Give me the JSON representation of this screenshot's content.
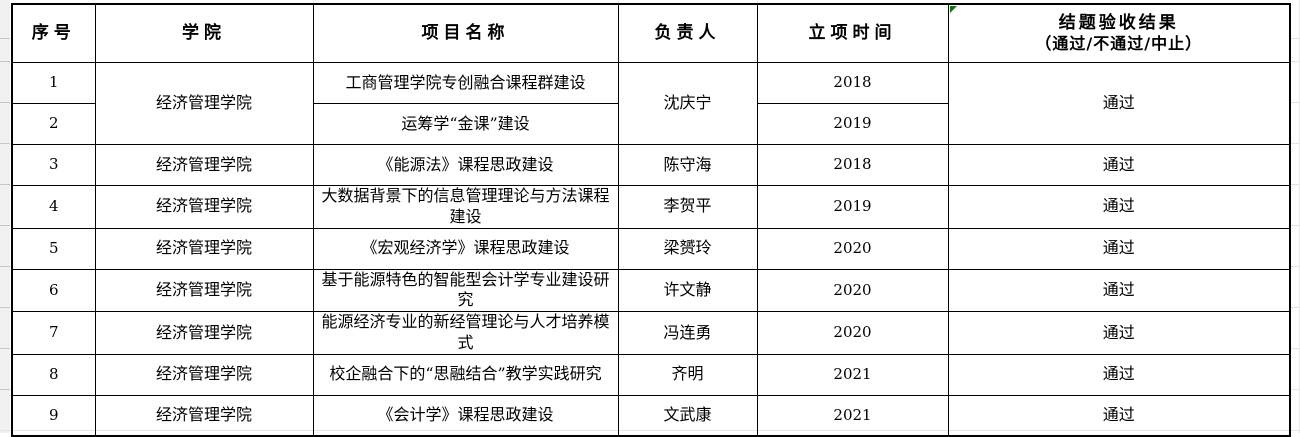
{
  "table": {
    "headers": [
      {
        "label": "序号"
      },
      {
        "label": "学院"
      },
      {
        "label": "项目名称"
      },
      {
        "label": "负责人"
      },
      {
        "label": "立项时间"
      },
      {
        "label": "结题验收结果",
        "sub": "（通过/不通过/中止）"
      }
    ],
    "rows": [
      {
        "no": "1",
        "college": "经济管理学院",
        "project": "工商管理学院专创融合课程群建设",
        "leader": "沈庆宁",
        "year": "2018",
        "result": "通过"
      },
      {
        "no": "2",
        "project": "运筹学“金课”建设",
        "year": "2019"
      },
      {
        "no": "3",
        "college": "经济管理学院",
        "project": "《能源法》课程思政建设",
        "leader": "陈守海",
        "year": "2018",
        "result": "通过"
      },
      {
        "no": "4",
        "college": "经济管理学院",
        "project": "大数据背景下的信息管理理论与方法课程建设",
        "leader": "李贺平",
        "year": "2019",
        "result": "通过"
      },
      {
        "no": "5",
        "college": "经济管理学院",
        "project": "《宏观经济学》课程思政建设",
        "leader": "梁赟玲",
        "year": "2020",
        "result": "通过"
      },
      {
        "no": "6",
        "college": "经济管理学院",
        "project": "基于能源特色的智能型会计学专业建设研究",
        "leader": "许文静",
        "year": "2020",
        "result": "通过"
      },
      {
        "no": "7",
        "college": "经济管理学院",
        "project": "能源经济专业的新经管理论与人才培养模式",
        "leader": "冯连勇",
        "year": "2020",
        "result": "通过"
      },
      {
        "no": "8",
        "college": "经济管理学院",
        "project": "校企融合下的“思融结合”教学实践研究",
        "leader": "齐明",
        "year": "2021",
        "result": "通过"
      },
      {
        "no": "9",
        "college": "经济管理学院",
        "project": "《会计学》课程思政建设",
        "leader": "文武康",
        "year": "2021",
        "result": "通过"
      }
    ]
  },
  "markers": {
    "error_indicator": "green-triangle",
    "error_indicator_color": "#008000"
  }
}
